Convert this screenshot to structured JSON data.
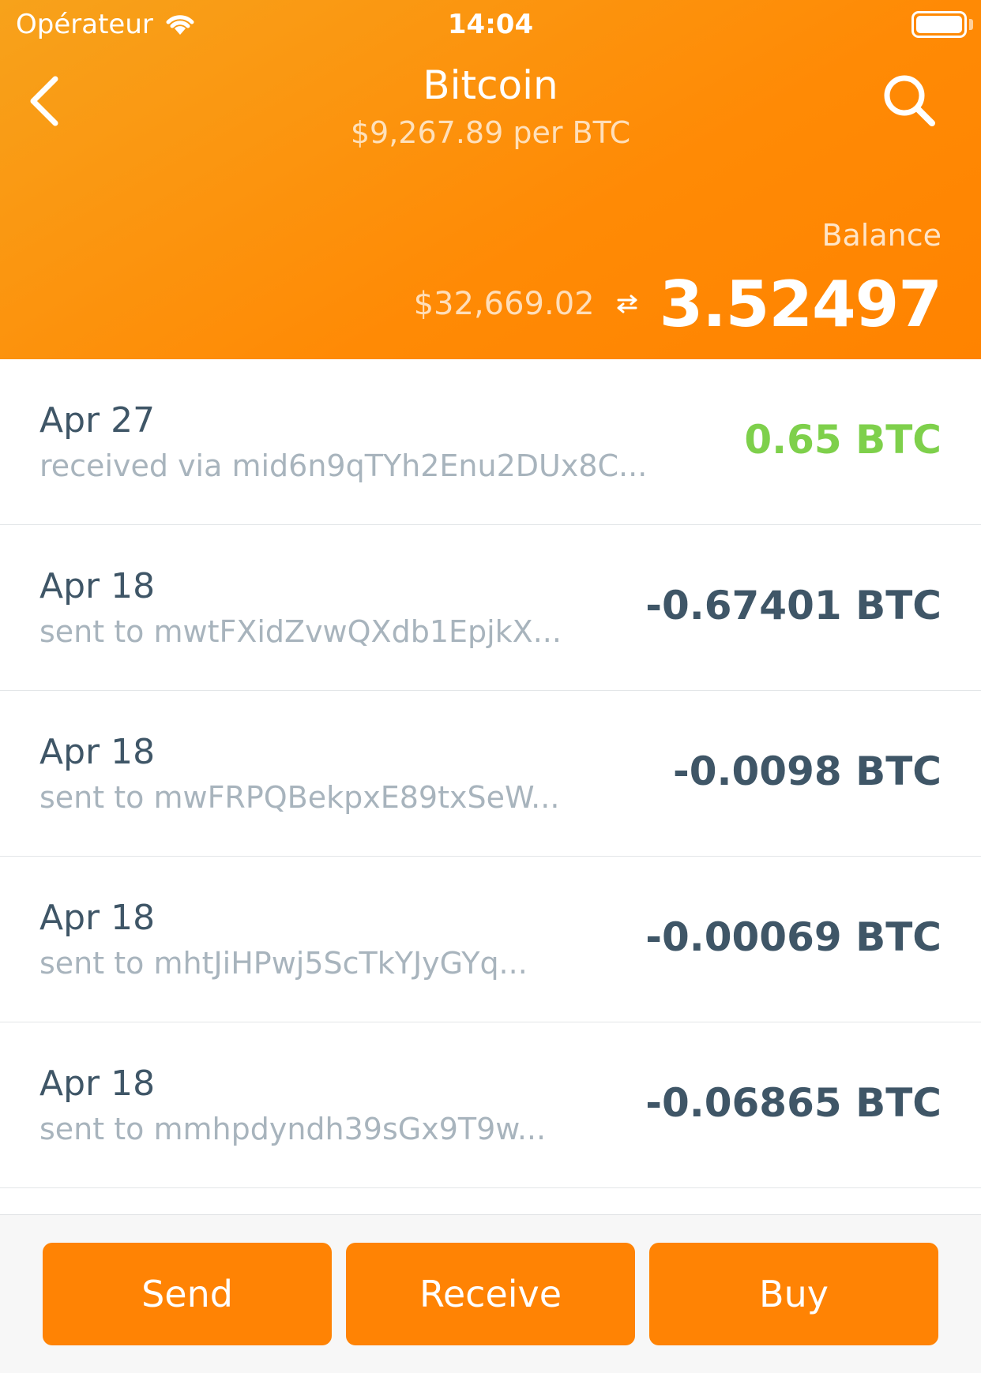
{
  "status_bar": {
    "carrier": "Opérateur",
    "time": "14:04"
  },
  "header": {
    "title": "Bitcoin",
    "subtitle": "$9,267.89 per BTC",
    "balance_label": "Balance",
    "balance_fiat": "$32,669.02",
    "balance_crypto": "3.52497"
  },
  "colors": {
    "accent": "#ff8304",
    "positive": "#7ed04b",
    "text_primary": "#3f5667",
    "text_secondary": "#a8b4bd"
  },
  "icons": {
    "back": "chevron-left-icon",
    "search": "search-icon",
    "swap": "swap-arrows-icon",
    "wifi": "wifi-icon",
    "battery": "battery-icon"
  },
  "transactions": [
    {
      "date": "Apr 27",
      "description": "received via mid6n9qTYh2Enu2DUx8C...",
      "amount": "0.65 BTC",
      "direction": "received"
    },
    {
      "date": "Apr 18",
      "description": "sent to mwtFXidZvwQXdb1EpjkX...",
      "amount": "-0.67401 BTC",
      "direction": "sent"
    },
    {
      "date": "Apr 18",
      "description": "sent to mwFRPQBekpxE89txSeW...",
      "amount": "-0.0098 BTC",
      "direction": "sent"
    },
    {
      "date": "Apr 18",
      "description": "sent to mhtJiHPwj5ScTkYJyGYq...",
      "amount": "-0.00069 BTC",
      "direction": "sent"
    },
    {
      "date": "Apr 18",
      "description": "sent to mmhpdyndh39sGx9T9w...",
      "amount": "-0.06865 BTC",
      "direction": "sent"
    }
  ],
  "actions": {
    "send_label": "Send",
    "receive_label": "Receive",
    "buy_label": "Buy"
  }
}
